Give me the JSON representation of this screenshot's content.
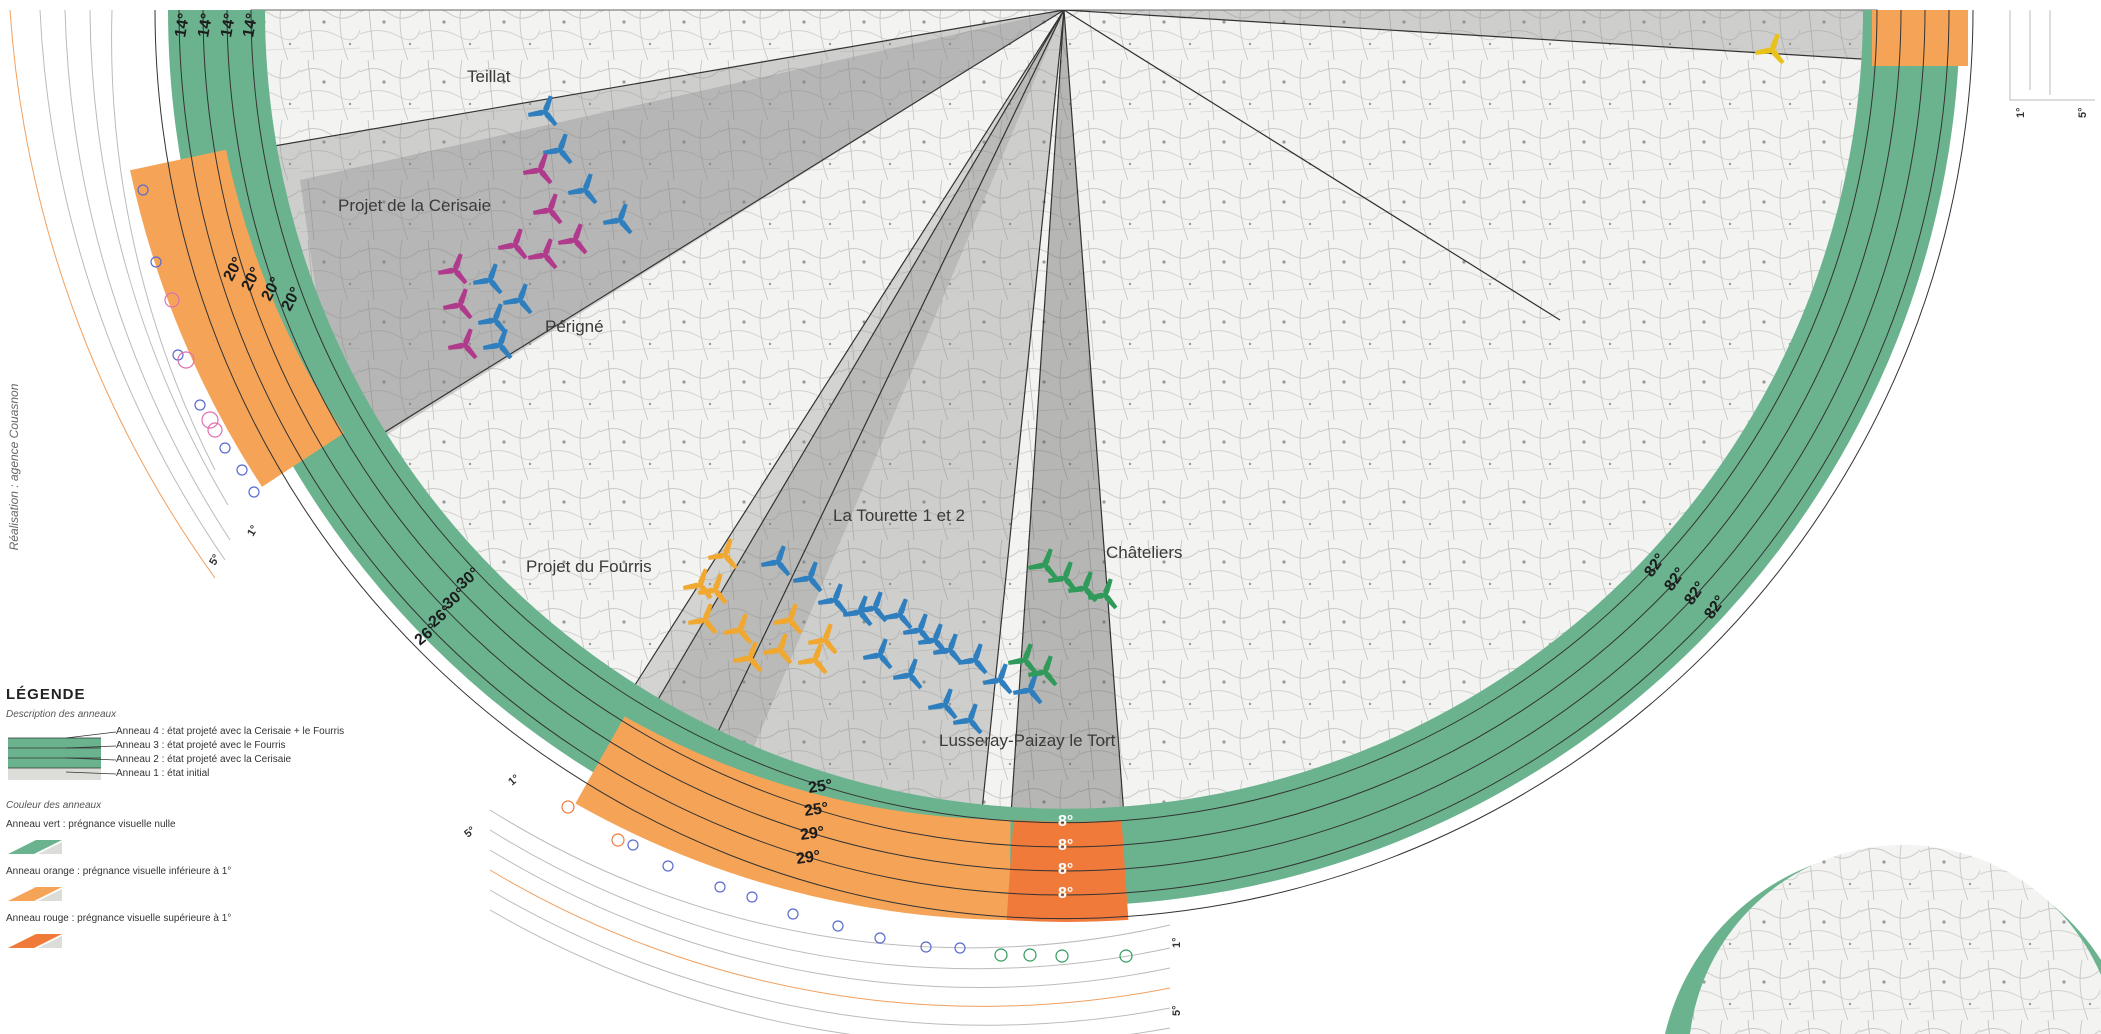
{
  "credit": "Réalisation : agence Couasnon",
  "places": {
    "teillat": "Teillat",
    "cerisaie": "Projet de la Cerisaie",
    "perigne": "Périgné",
    "tourette": "La Tourette 1 et 2",
    "fourris": "Projet du Fourris",
    "chateliers": "Châteliers",
    "lusseray": "Lusseray-Paizay le Tort"
  },
  "ring_values": {
    "top_left": [
      "14°",
      "14°",
      "14°",
      "14°"
    ],
    "left_orange": [
      "20°",
      "20°",
      "20°",
      "20°"
    ],
    "left_green": [
      "30°",
      "30°",
      "26°",
      "26°"
    ],
    "bottom_orange": [
      "25°",
      "25°",
      "29°",
      "29°"
    ],
    "bottom_red": [
      "8°",
      "8°",
      "8°",
      "8°"
    ],
    "right_green": [
      "82°",
      "82°",
      "82°",
      "82°"
    ]
  },
  "axis_ticks": {
    "one": "1°",
    "five": "5°"
  },
  "legend": {
    "title": "LÉGENDE",
    "rings_heading": "Description des anneaux",
    "ring4": "Anneau 4 : état projeté avec la Cerisaie + le Fourris",
    "ring3": "Anneau 3 : état projeté avec le Fourris",
    "ring2": "Anneau 2 : état projeté avec la Cerisaie",
    "ring1": "Anneau 1 : état initial",
    "colors_heading": "Couleur des anneaux",
    "green": "Anneau vert : prégnance visuelle nulle",
    "orange": "Anneau orange : prégnance visuelle inférieure à 1°",
    "red": "Anneau rouge : prégnance visuelle supérieure à 1°"
  },
  "colors": {
    "green": "#6bb38f",
    "orange": "#f5a457",
    "red": "#ef7a3a",
    "turbine_blue": "#2f7fbf",
    "turbine_magenta": "#b03a8c",
    "turbine_orange": "#f0a830",
    "turbine_green": "#2f9a5a",
    "turbine_yellow": "#e8c21a"
  }
}
